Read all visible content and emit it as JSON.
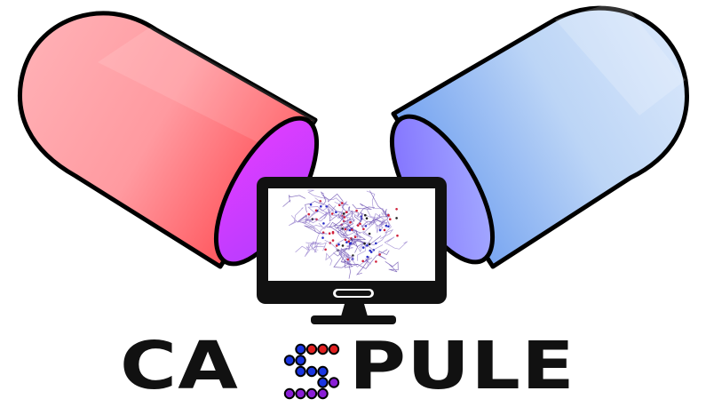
{
  "logo": {
    "word_left": "CA",
    "word_right": "PULE",
    "colors": {
      "red_capsule": "#ff6b6b",
      "blue_capsule": "#a9ccf5",
      "capsule_rim": "#9a4cff",
      "dot_red": "#e02020",
      "dot_blue": "#1a35e0",
      "dot_purple": "#8a1fd6",
      "monitor": "#111111"
    },
    "icons": [
      "red-capsule-icon",
      "blue-capsule-icon",
      "monitor-icon",
      "protein-structure-icon",
      "dot-matrix-s-icon"
    ]
  }
}
